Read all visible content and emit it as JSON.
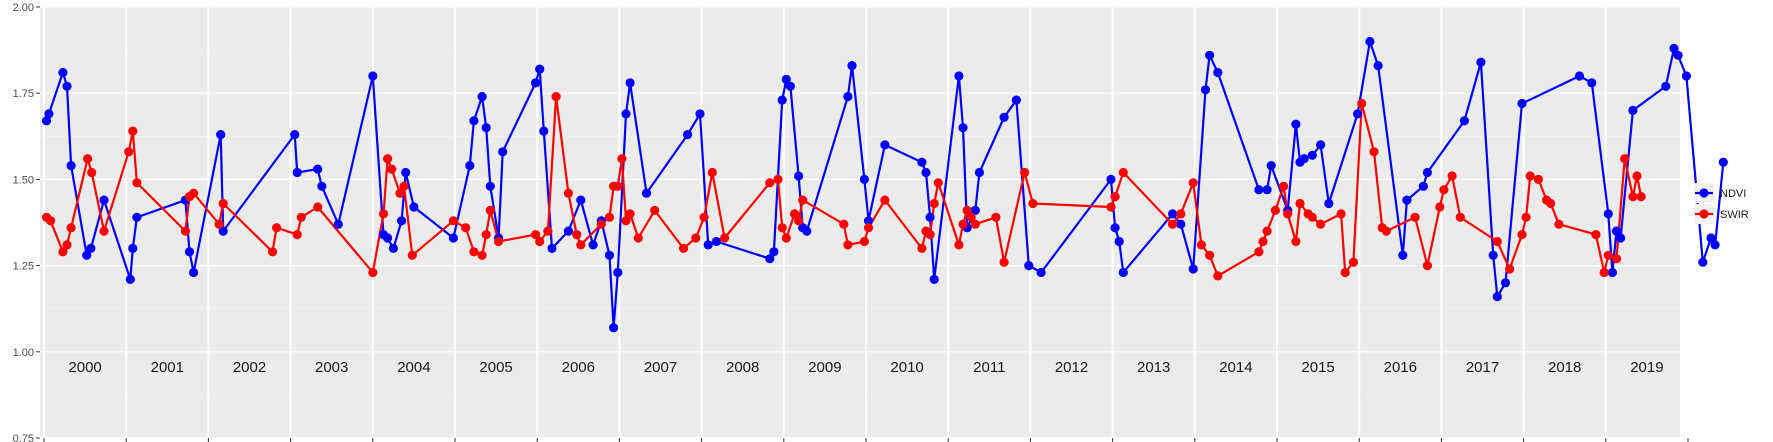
{
  "chart_data": {
    "type": "line",
    "yticks": [
      "0.75",
      "1.00",
      "1.25",
      "1.50",
      "1.75",
      "2.00"
    ],
    "ylim": [
      0.75,
      2.0
    ],
    "xlim": [
      2000.0,
      2020.0
    ],
    "grid": true,
    "legend_position": "right",
    "years": [
      "2000",
      "2001",
      "2002",
      "2003",
      "2004",
      "2005",
      "2006",
      "2007",
      "2008",
      "2009",
      "2010",
      "2011",
      "2012",
      "2013",
      "2014",
      "2015",
      "2016",
      "2017",
      "2018",
      "2019"
    ],
    "series": [
      {
        "name": "NDVI",
        "color": "#0000ff",
        "points": [
          [
            2000.03,
            1.67
          ],
          [
            2000.06,
            1.69
          ],
          [
            2000.23,
            1.81
          ],
          [
            2000.28,
            1.77
          ],
          [
            2000.33,
            1.54
          ],
          [
            2000.52,
            1.28
          ],
          [
            2000.57,
            1.3
          ],
          [
            2000.73,
            1.44
          ],
          [
            2001.05,
            1.21
          ],
          [
            2001.08,
            1.3
          ],
          [
            2001.13,
            1.39
          ],
          [
            2001.72,
            1.44
          ],
          [
            2001.77,
            1.29
          ],
          [
            2001.82,
            1.23
          ],
          [
            2002.15,
            1.63
          ],
          [
            2002.18,
            1.35
          ],
          [
            2003.05,
            1.63
          ],
          [
            2003.08,
            1.52
          ],
          [
            2003.33,
            1.53
          ],
          [
            2003.38,
            1.48
          ],
          [
            2003.58,
            1.37
          ],
          [
            2004.0,
            1.8
          ],
          [
            2004.13,
            1.34
          ],
          [
            2004.18,
            1.33
          ],
          [
            2004.25,
            1.3
          ],
          [
            2004.35,
            1.38
          ],
          [
            2004.4,
            1.52
          ],
          [
            2004.5,
            1.42
          ],
          [
            2004.98,
            1.33
          ],
          [
            2005.18,
            1.54
          ],
          [
            2005.23,
            1.67
          ],
          [
            2005.33,
            1.74
          ],
          [
            2005.38,
            1.65
          ],
          [
            2005.43,
            1.48
          ],
          [
            2005.53,
            1.33
          ],
          [
            2005.58,
            1.58
          ],
          [
            2005.98,
            1.78
          ],
          [
            2006.03,
            1.82
          ],
          [
            2006.08,
            1.64
          ],
          [
            2006.18,
            1.3
          ],
          [
            2006.38,
            1.35
          ],
          [
            2006.53,
            1.44
          ],
          [
            2006.68,
            1.31
          ],
          [
            2006.78,
            1.38
          ],
          [
            2006.88,
            1.28
          ],
          [
            2006.93,
            1.07
          ],
          [
            2006.98,
            1.23
          ],
          [
            2007.08,
            1.69
          ],
          [
            2007.13,
            1.78
          ],
          [
            2007.33,
            1.46
          ],
          [
            2007.83,
            1.63
          ],
          [
            2007.98,
            1.69
          ],
          [
            2008.08,
            1.31
          ],
          [
            2008.18,
            1.32
          ],
          [
            2008.83,
            1.27
          ],
          [
            2008.88,
            1.29
          ],
          [
            2008.98,
            1.73
          ],
          [
            2009.03,
            1.79
          ],
          [
            2009.08,
            1.77
          ],
          [
            2009.18,
            1.51
          ],
          [
            2009.23,
            1.36
          ],
          [
            2009.28,
            1.35
          ],
          [
            2009.78,
            1.74
          ],
          [
            2009.83,
            1.83
          ],
          [
            2009.98,
            1.5
          ],
          [
            2010.03,
            1.38
          ],
          [
            2010.23,
            1.6
          ],
          [
            2010.68,
            1.55
          ],
          [
            2010.73,
            1.52
          ],
          [
            2010.78,
            1.39
          ],
          [
            2010.83,
            1.21
          ],
          [
            2011.13,
            1.8
          ],
          [
            2011.18,
            1.65
          ],
          [
            2011.23,
            1.36
          ],
          [
            2011.33,
            1.41
          ],
          [
            2011.38,
            1.52
          ],
          [
            2011.68,
            1.68
          ],
          [
            2011.83,
            1.73
          ],
          [
            2011.98,
            1.25
          ],
          [
            2012.13,
            1.23
          ],
          [
            2012.98,
            1.5
          ],
          [
            2013.03,
            1.36
          ],
          [
            2013.08,
            1.32
          ],
          [
            2013.13,
            1.23
          ],
          [
            2013.73,
            1.4
          ],
          [
            2013.83,
            1.37
          ],
          [
            2013.98,
            1.24
          ],
          [
            2014.13,
            1.76
          ],
          [
            2014.18,
            1.86
          ],
          [
            2014.28,
            1.81
          ],
          [
            2014.78,
            1.47
          ],
          [
            2014.88,
            1.47
          ],
          [
            2014.93,
            1.54
          ],
          [
            2015.13,
            1.41
          ],
          [
            2015.23,
            1.66
          ],
          [
            2015.28,
            1.55
          ],
          [
            2015.33,
            1.56
          ],
          [
            2015.43,
            1.57
          ],
          [
            2015.53,
            1.6
          ],
          [
            2015.63,
            1.43
          ],
          [
            2015.98,
            1.69
          ],
          [
            2016.13,
            1.9
          ],
          [
            2016.23,
            1.83
          ],
          [
            2016.53,
            1.28
          ],
          [
            2016.58,
            1.44
          ],
          [
            2016.78,
            1.48
          ],
          [
            2016.83,
            1.52
          ],
          [
            2017.28,
            1.67
          ],
          [
            2017.48,
            1.84
          ],
          [
            2017.63,
            1.28
          ],
          [
            2017.68,
            1.16
          ],
          [
            2017.78,
            1.2
          ],
          [
            2017.98,
            1.72
          ],
          [
            2018.68,
            1.8
          ],
          [
            2018.83,
            1.78
          ],
          [
            2019.03,
            1.4
          ],
          [
            2019.08,
            1.23
          ],
          [
            2019.13,
            1.35
          ],
          [
            2019.18,
            1.33
          ],
          [
            2019.33,
            1.7
          ],
          [
            2019.73,
            1.77
          ],
          [
            2019.83,
            1.88
          ],
          [
            2019.88,
            1.86
          ],
          [
            2019.98,
            1.8
          ],
          [
            2020.18,
            1.26
          ],
          [
            2020.28,
            1.33
          ],
          [
            2020.33,
            1.31
          ],
          [
            2020.43,
            1.55
          ]
        ]
      },
      {
        "name": "SWIR",
        "color": "#ff0000",
        "points": [
          [
            2000.03,
            1.39
          ],
          [
            2000.08,
            1.38
          ],
          [
            2000.23,
            1.29
          ],
          [
            2000.28,
            1.31
          ],
          [
            2000.33,
            1.36
          ],
          [
            2000.53,
            1.56
          ],
          [
            2000.58,
            1.52
          ],
          [
            2000.73,
            1.35
          ],
          [
            2001.03,
            1.58
          ],
          [
            2001.08,
            1.64
          ],
          [
            2001.13,
            1.49
          ],
          [
            2001.72,
            1.35
          ],
          [
            2001.77,
            1.45
          ],
          [
            2001.82,
            1.46
          ],
          [
            2002.13,
            1.37
          ],
          [
            2002.18,
            1.43
          ],
          [
            2002.78,
            1.29
          ],
          [
            2002.83,
            1.36
          ],
          [
            2003.08,
            1.34
          ],
          [
            2003.13,
            1.39
          ],
          [
            2003.33,
            1.42
          ],
          [
            2004.0,
            1.23
          ],
          [
            2004.13,
            1.4
          ],
          [
            2004.18,
            1.56
          ],
          [
            2004.23,
            1.53
          ],
          [
            2004.33,
            1.46
          ],
          [
            2004.38,
            1.48
          ],
          [
            2004.48,
            1.28
          ],
          [
            2004.98,
            1.38
          ],
          [
            2005.13,
            1.36
          ],
          [
            2005.23,
            1.29
          ],
          [
            2005.33,
            1.28
          ],
          [
            2005.38,
            1.34
          ],
          [
            2005.43,
            1.41
          ],
          [
            2005.53,
            1.32
          ],
          [
            2005.98,
            1.34
          ],
          [
            2006.03,
            1.32
          ],
          [
            2006.13,
            1.35
          ],
          [
            2006.23,
            1.74
          ],
          [
            2006.38,
            1.46
          ],
          [
            2006.48,
            1.34
          ],
          [
            2006.53,
            1.31
          ],
          [
            2006.78,
            1.37
          ],
          [
            2006.88,
            1.39
          ],
          [
            2006.93,
            1.48
          ],
          [
            2006.98,
            1.48
          ],
          [
            2007.03,
            1.56
          ],
          [
            2007.08,
            1.38
          ],
          [
            2007.13,
            1.4
          ],
          [
            2007.23,
            1.33
          ],
          [
            2007.43,
            1.41
          ],
          [
            2007.78,
            1.3
          ],
          [
            2007.93,
            1.33
          ],
          [
            2008.03,
            1.39
          ],
          [
            2008.13,
            1.52
          ],
          [
            2008.28,
            1.33
          ],
          [
            2008.83,
            1.49
          ],
          [
            2008.93,
            1.5
          ],
          [
            2008.98,
            1.36
          ],
          [
            2009.03,
            1.33
          ],
          [
            2009.13,
            1.4
          ],
          [
            2009.18,
            1.38
          ],
          [
            2009.23,
            1.44
          ],
          [
            2009.73,
            1.37
          ],
          [
            2009.78,
            1.31
          ],
          [
            2009.98,
            1.32
          ],
          [
            2010.03,
            1.36
          ],
          [
            2010.23,
            1.44
          ],
          [
            2010.68,
            1.3
          ],
          [
            2010.73,
            1.35
          ],
          [
            2010.78,
            1.34
          ],
          [
            2010.83,
            1.43
          ],
          [
            2010.88,
            1.49
          ],
          [
            2011.13,
            1.31
          ],
          [
            2011.18,
            1.37
          ],
          [
            2011.23,
            1.41
          ],
          [
            2011.28,
            1.39
          ],
          [
            2011.33,
            1.37
          ],
          [
            2011.58,
            1.39
          ],
          [
            2011.68,
            1.26
          ],
          [
            2011.93,
            1.52
          ],
          [
            2012.03,
            1.43
          ],
          [
            2012.98,
            1.42
          ],
          [
            2013.03,
            1.45
          ],
          [
            2013.13,
            1.52
          ],
          [
            2013.73,
            1.37
          ],
          [
            2013.83,
            1.4
          ],
          [
            2013.98,
            1.49
          ],
          [
            2014.08,
            1.31
          ],
          [
            2014.18,
            1.28
          ],
          [
            2014.28,
            1.22
          ],
          [
            2014.78,
            1.29
          ],
          [
            2014.83,
            1.32
          ],
          [
            2014.88,
            1.35
          ],
          [
            2014.98,
            1.41
          ],
          [
            2015.08,
            1.48
          ],
          [
            2015.13,
            1.4
          ],
          [
            2015.23,
            1.32
          ],
          [
            2015.28,
            1.43
          ],
          [
            2015.38,
            1.4
          ],
          [
            2015.43,
            1.39
          ],
          [
            2015.53,
            1.37
          ],
          [
            2015.78,
            1.4
          ],
          [
            2015.83,
            1.23
          ],
          [
            2015.93,
            1.26
          ],
          [
            2016.03,
            1.72
          ],
          [
            2016.18,
            1.58
          ],
          [
            2016.28,
            1.36
          ],
          [
            2016.33,
            1.35
          ],
          [
            2016.68,
            1.39
          ],
          [
            2016.83,
            1.25
          ],
          [
            2016.98,
            1.42
          ],
          [
            2017.03,
            1.47
          ],
          [
            2017.13,
            1.51
          ],
          [
            2017.23,
            1.39
          ],
          [
            2017.68,
            1.32
          ],
          [
            2017.83,
            1.24
          ],
          [
            2017.98,
            1.34
          ],
          [
            2018.03,
            1.39
          ],
          [
            2018.08,
            1.51
          ],
          [
            2018.18,
            1.5
          ],
          [
            2018.28,
            1.44
          ],
          [
            2018.33,
            1.43
          ],
          [
            2018.43,
            1.37
          ],
          [
            2018.88,
            1.34
          ],
          [
            2018.98,
            1.23
          ],
          [
            2019.03,
            1.28
          ],
          [
            2019.13,
            1.27
          ],
          [
            2019.23,
            1.56
          ],
          [
            2019.33,
            1.45
          ],
          [
            2019.38,
            1.51
          ],
          [
            2019.43,
            1.45
          ]
        ]
      }
    ]
  }
}
